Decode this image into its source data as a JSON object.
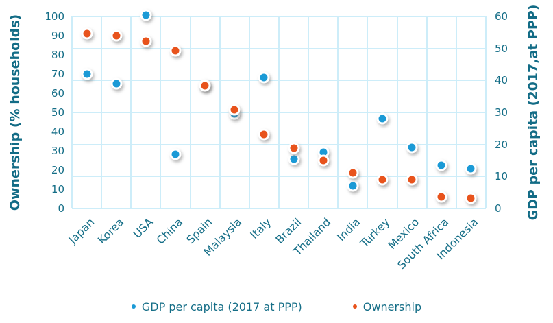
{
  "chart_data": {
    "type": "scatter",
    "title": "",
    "categories": [
      "Japan",
      "Korea",
      "USA",
      "China",
      "Spain",
      "Malaysia",
      "Italy",
      "Brazil",
      "Thailand",
      "India",
      "Turkey",
      "Mexico",
      "South Africa",
      "Indonesia"
    ],
    "series": [
      {
        "name": "GDP per capita (2017 at PPP)",
        "axis": "right",
        "color": "#1B9AD6",
        "values": [
          42,
          39,
          60.5,
          17,
          38.5,
          29.5,
          41,
          15.5,
          17.5,
          7,
          28,
          19,
          13.5,
          12.5
        ]
      },
      {
        "name": "Ownership",
        "axis": "left",
        "color": "#E8531C",
        "values": [
          91,
          90,
          87,
          82,
          64,
          51.5,
          38.5,
          31.5,
          25,
          18.5,
          15,
          15,
          6,
          5.5
        ]
      }
    ],
    "left_axis": {
      "title": "Ownership (% households)",
      "min": 0,
      "max": 100,
      "tick_step": 10,
      "ticks": [
        100,
        90,
        80,
        70,
        60,
        50,
        40,
        30,
        20,
        10,
        0
      ]
    },
    "right_axis": {
      "title": "GDP per capita (2017,at PPP)",
      "min": 0,
      "max": 60,
      "tick_step": 10,
      "ticks": [
        60,
        50,
        40,
        30,
        20,
        10,
        0
      ]
    },
    "grid": true,
    "gridline_rows": 6,
    "legend_position": "bottom"
  },
  "colors": {
    "gridline": "#CDEDF9",
    "axis_text": "#156E87",
    "series_blue": "#1B9AD6",
    "series_orange": "#E8531C"
  }
}
